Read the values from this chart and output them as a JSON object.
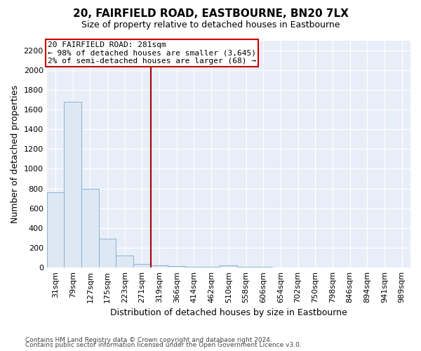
{
  "title": "20, FAIRFIELD ROAD, EASTBOURNE, BN20 7LX",
  "subtitle": "Size of property relative to detached houses in Eastbourne",
  "xlabel": "Distribution of detached houses by size in Eastbourne",
  "ylabel": "Number of detached properties",
  "footnote1": "Contains HM Land Registry data © Crown copyright and database right 2024.",
  "footnote2": "Contains public sector information licensed under the Open Government Licence v3.0.",
  "annotation_title": "20 FAIRFIELD ROAD: 281sqm",
  "annotation_line1": "← 98% of detached houses are smaller (3,645)",
  "annotation_line2": "2% of semi-detached houses are larger (68) →",
  "bar_color": "#dde8f4",
  "bar_edgecolor": "#7aaac8",
  "vline_color": "#aa0000",
  "annotation_edgecolor": "#cc0000",
  "plot_bg": "#e8eef8",
  "grid_color": "#ffffff",
  "categories": [
    "31sqm",
    "79sqm",
    "127sqm",
    "175sqm",
    "223sqm",
    "271sqm",
    "319sqm",
    "366sqm",
    "414sqm",
    "462sqm",
    "510sqm",
    "558sqm",
    "606sqm",
    "654sqm",
    "702sqm",
    "750sqm",
    "798sqm",
    "846sqm",
    "894sqm",
    "941sqm",
    "989sqm"
  ],
  "values": [
    760,
    1680,
    800,
    295,
    120,
    35,
    25,
    17,
    5,
    5,
    20,
    5,
    5,
    0,
    0,
    0,
    0,
    0,
    0,
    0,
    0
  ],
  "vline_position": 5.5,
  "ylim": [
    0,
    2300
  ],
  "yticks": [
    0,
    200,
    400,
    600,
    800,
    1000,
    1200,
    1400,
    1600,
    1800,
    2000,
    2200
  ],
  "title_fontsize": 11,
  "subtitle_fontsize": 9,
  "ylabel_fontsize": 9,
  "xlabel_fontsize": 9,
  "tick_fontsize": 8,
  "annotation_fontsize": 8,
  "footnote_fontsize": 6.5
}
